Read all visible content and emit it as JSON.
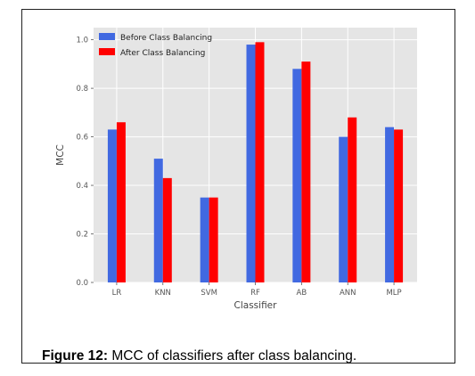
{
  "caption": {
    "label": "Figure 12:",
    "text": " MCC of classifiers after class balancing."
  },
  "chart_data": {
    "type": "bar",
    "categories": [
      "LR",
      "KNN",
      "SVM",
      "RF",
      "AB",
      "ANN",
      "MLP"
    ],
    "series": [
      {
        "name": "Before Class Balancing",
        "color": "#4169e1",
        "values": [
          0.63,
          0.51,
          0.35,
          0.98,
          0.88,
          0.6,
          0.64
        ]
      },
      {
        "name": "After Class Balancing",
        "color": "#ff0000",
        "values": [
          0.66,
          0.43,
          0.35,
          0.99,
          0.91,
          0.68,
          0.63
        ]
      }
    ],
    "xlabel": "Classifier",
    "ylabel": "MCC",
    "ylim": [
      0,
      1.05
    ],
    "yticks": [
      "0.0",
      "0.2",
      "0.4",
      "0.6",
      "0.8",
      "1.0"
    ],
    "grid": true,
    "background": "#e5e5e5",
    "legend_position": "top-left"
  }
}
